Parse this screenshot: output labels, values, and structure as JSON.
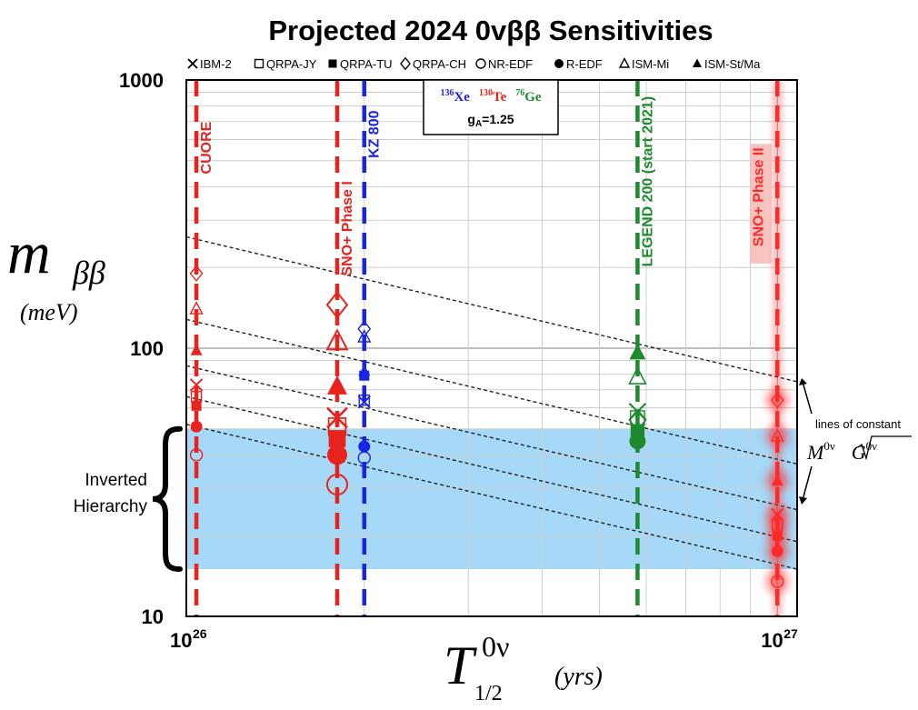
{
  "chart_data": {
    "type": "scatter",
    "title": "Projected 2024 0vββ Sensitivities",
    "xlabel": {
      "main": "T",
      "superscript": "0ν",
      "subscript": "1/2",
      "unit": "(yrs)"
    },
    "ylabel": {
      "main": "m",
      "subscript": "ββ",
      "unit": "(meV)"
    },
    "x_scale": "log",
    "y_scale": "log",
    "xlim": [
      1e+26,
      1.08e+27
    ],
    "ylim": [
      10,
      1000
    ],
    "x_ticks": [
      {
        "value": 1e+26,
        "base": "10",
        "exp": "26"
      },
      {
        "value": 1e+27,
        "base": "10",
        "exp": "27"
      }
    ],
    "y_ticks": [
      {
        "value": 10,
        "label": "10"
      },
      {
        "value": 100,
        "label": "100"
      },
      {
        "value": 1000,
        "label": "1000"
      }
    ],
    "grid": true,
    "legend_position": "top",
    "legend": [
      {
        "key": "IBM-2",
        "label": "IBM-2",
        "marker": "x"
      },
      {
        "key": "QRPA-JY",
        "label": "QRPA-JY",
        "marker": "square-open"
      },
      {
        "key": "QRPA-TU",
        "label": "QRPA-TU",
        "marker": "square-filled"
      },
      {
        "key": "QRPA-CH",
        "label": "QRPA-CH",
        "marker": "diamond-open"
      },
      {
        "key": "NR-EDF",
        "label": "NR-EDF",
        "marker": "circle-open"
      },
      {
        "key": "R-EDF",
        "label": "R-EDF",
        "marker": "circle-filled"
      },
      {
        "key": "ISM-Mi",
        "label": "ISM-Mi",
        "marker": "triangle-open"
      },
      {
        "key": "ISM-St/Ma",
        "label": "ISM-St/Ma",
        "marker": "triangle-filled"
      }
    ],
    "isotope_box": {
      "isotopes": [
        {
          "mass": "136",
          "symbol": "Xe",
          "color": "#1a24e6"
        },
        {
          "mass": "130",
          "symbol": "Te",
          "color": "#e8231e"
        },
        {
          "mass": "76",
          "symbol": "Ge",
          "color": "#1e8a2e"
        }
      ],
      "ga_label": "g",
      "ga_sub": "A",
      "ga_value": "=1.25"
    },
    "inverted_hierarchy": {
      "label_lines": [
        "Inverted",
        "Hierarchy"
      ],
      "ymin": 15,
      "ymax": 50,
      "color": "#a6d8f7"
    },
    "constant_lines": {
      "note_lines": [
        "lines of constant",
        "M",
        "0ν",
        "G",
        "0ν"
      ],
      "lines": [
        {
          "y_at_xmin": 260,
          "y_at_xmax": 75
        },
        {
          "y_at_xmin": 128,
          "y_at_xmax": 37
        },
        {
          "y_at_xmin": 86,
          "y_at_xmax": 25
        },
        {
          "y_at_xmin": 66,
          "y_at_xmax": 19
        },
        {
          "y_at_xmin": 52,
          "y_at_xmax": 15
        }
      ]
    },
    "experiments": [
      {
        "name": "CUORE",
        "isotope": "Te",
        "x": 1.04e+26,
        "color": "#e8231e",
        "glow": false,
        "label_y": 700,
        "points": [
          {
            "model": "QRPA-CH",
            "y": 190
          },
          {
            "model": "ISM-Mi",
            "y": 140
          },
          {
            "model": "ISM-St/Ma",
            "y": 98
          },
          {
            "model": "IBM-2",
            "y": 73
          },
          {
            "model": "QRPA-JY",
            "y": 66
          },
          {
            "model": "QRPA-TU",
            "y": 61
          },
          {
            "model": "R-EDF",
            "y": 51
          },
          {
            "model": "NR-EDF",
            "y": 40
          }
        ]
      },
      {
        "name": "SNO+ Phase I",
        "isotope": "Te",
        "x": 1.8e+26,
        "color": "#e8231e",
        "glow": false,
        "label_y": 420,
        "points": [
          {
            "model": "QRPA-CH",
            "y": 145
          },
          {
            "model": "ISM-Mi",
            "y": 106
          },
          {
            "model": "ISM-St/Ma",
            "y": 72
          },
          {
            "model": "IBM-2",
            "y": 55
          },
          {
            "model": "QRPA-JY",
            "y": 51
          },
          {
            "model": "QRPA-TU",
            "y": 46
          },
          {
            "model": "R-EDF",
            "y": 40
          },
          {
            "model": "NR-EDF",
            "y": 31
          }
        ]
      },
      {
        "name": "KZ 800",
        "isotope": "Xe",
        "x": 2e+26,
        "color": "#1a24e6",
        "glow": false,
        "label_y": 770,
        "points": [
          {
            "model": "QRPA-CH",
            "y": 118
          },
          {
            "model": "ISM-Mi",
            "y": 110
          },
          {
            "model": "ISM-St/Ma",
            "y": 82
          },
          {
            "model": "QRPA-TU",
            "y": 79
          },
          {
            "model": "QRPA-JY",
            "y": 64
          },
          {
            "model": "IBM-2",
            "y": 63
          },
          {
            "model": "R-EDF",
            "y": 43
          },
          {
            "model": "NR-EDF",
            "y": 39
          }
        ]
      },
      {
        "name": "LEGEND 200 (start 2021)",
        "isotope": "Ge",
        "x": 5.8e+26,
        "color": "#1e8a2e",
        "glow": false,
        "label_y": 870,
        "points": [
          {
            "model": "ISM-St/Ma",
            "y": 96
          },
          {
            "model": "ISM-Mi",
            "y": 78
          },
          {
            "model": "IBM-2",
            "y": 58
          },
          {
            "model": "QRPA-CH",
            "y": 54
          },
          {
            "model": "QRPA-JY",
            "y": 55
          },
          {
            "model": "QRPA-TU",
            "y": 49
          },
          {
            "model": "R-EDF",
            "y": 45
          }
        ]
      },
      {
        "name": "SNO+ Phase II",
        "isotope": "Te",
        "x": 1e+27,
        "color": "#ff2a2a",
        "glow": true,
        "label_y": 560,
        "points": [
          {
            "model": "QRPA-CH",
            "y": 64
          },
          {
            "model": "ISM-Mi",
            "y": 47
          },
          {
            "model": "ISM-St/Ma",
            "y": 32
          },
          {
            "model": "IBM-2",
            "y": 24
          },
          {
            "model": "QRPA-JY",
            "y": 22
          },
          {
            "model": "QRPA-TU",
            "y": 20
          },
          {
            "model": "R-EDF",
            "y": 17.5
          },
          {
            "model": "NR-EDF",
            "y": 13.5
          }
        ]
      }
    ]
  }
}
